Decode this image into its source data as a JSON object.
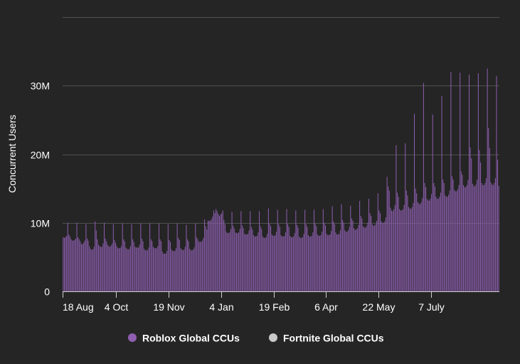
{
  "colors": {
    "background": "#252525",
    "roblox": "#8e5fb0",
    "roblox_stroke": "#a77ccc",
    "fortnite": "#c9c9c9",
    "gridline": "#505050",
    "axis_text": "#ffffff"
  },
  "chart_data": {
    "type": "bar",
    "title": "",
    "xlabel": "",
    "ylabel": "Concurrent Users",
    "ylim": [
      0,
      40000000
    ],
    "yticks": [
      {
        "value": 0,
        "label": "0"
      },
      {
        "value": 10000000,
        "label": "10M"
      },
      {
        "value": 20000000,
        "label": "20M"
      },
      {
        "value": 30000000,
        "label": "30M"
      },
      {
        "value": 40000000,
        "label": ""
      }
    ],
    "x_start_label": "18 Aug",
    "x_ticks": [
      {
        "day": 0,
        "label": "18 Aug"
      },
      {
        "day": 47,
        "label": "4 Oct"
      },
      {
        "day": 93,
        "label": "19 Nov"
      },
      {
        "day": 139,
        "label": "4 Jan"
      },
      {
        "day": 185,
        "label": "19 Feb"
      },
      {
        "day": 231,
        "label": "6 Apr"
      },
      {
        "day": 277,
        "label": "22 May"
      },
      {
        "day": 323,
        "label": "7 July"
      }
    ],
    "legend": [
      {
        "name": "Roblox Global CCUs",
        "color": "#8e5fb0",
        "icon": "circle"
      },
      {
        "name": "Fortnite Global CCUs",
        "color": "#c9c9c9",
        "icon": "circle"
      }
    ],
    "legend_position": "bottom-center",
    "series": [
      {
        "name": "Roblox Global CCUs",
        "start_day": 0,
        "values": [
          7900000,
          7800000,
          7900000,
          8100000,
          10000000,
          8300000,
          8000000,
          7600000,
          7400000,
          7400000,
          7500000,
          7700000,
          10000000,
          7900000,
          7600000,
          7300000,
          6900000,
          6900000,
          7100000,
          7400000,
          9800000,
          7700000,
          7400000,
          6600000,
          6200000,
          6100000,
          6100000,
          6500000,
          10200000,
          8900000,
          7600000,
          6800000,
          6600000,
          6500000,
          6500000,
          7000000,
          10000000,
          7700000,
          7300000,
          6800000,
          6600000,
          6500000,
          6700000,
          7000000,
          9800000,
          7500000,
          7100000,
          6600000,
          6300000,
          6300000,
          6300000,
          6600000,
          9900000,
          7600000,
          7300000,
          6400000,
          6200000,
          6100000,
          6200000,
          6600000,
          9800000,
          7600000,
          7200000,
          6500000,
          6400000,
          6400000,
          6400000,
          6800000,
          9900000,
          7700000,
          7300000,
          6200000,
          6000000,
          6000000,
          6000000,
          6400000,
          9900000,
          7600000,
          7300000,
          6500000,
          6300000,
          6300000,
          6300000,
          6600000,
          9900000,
          7600000,
          7300000,
          5800000,
          5500000,
          5500000,
          5500000,
          5900000,
          9800000,
          7500000,
          7200000,
          6100000,
          5900000,
          5900000,
          5900000,
          6300000,
          9900000,
          7800000,
          7500000,
          6300000,
          6100000,
          6000000,
          6100000,
          6500000,
          9700000,
          7600000,
          7300000,
          6200000,
          6000000,
          6000000,
          6100000,
          6400000,
          9900000,
          7900000,
          7600000,
          7200000,
          7300000,
          7200000,
          7400000,
          7800000,
          10500000,
          9500000,
          9000000,
          10300000,
          10300000,
          10300000,
          10500000,
          10900000,
          11800000,
          11400000,
          12000000,
          11700000,
          11300000,
          11000000,
          11200000,
          11400000,
          11800000,
          10400000,
          9800000,
          8700000,
          8500000,
          8500000,
          8600000,
          9100000,
          11600000,
          9600000,
          9200000,
          8600000,
          8500000,
          8500000,
          8600000,
          9100000,
          11700000,
          9600000,
          9200000,
          8400000,
          8300000,
          8300000,
          8400000,
          8900000,
          11700000,
          9400000,
          9000000,
          8200000,
          8000000,
          8000000,
          8100000,
          8600000,
          11700000,
          9500000,
          9100000,
          8000000,
          7800000,
          7800000,
          7900000,
          8400000,
          12100000,
          9900000,
          9500000,
          8300000,
          8100000,
          8100000,
          8200000,
          8700000,
          11900000,
          9800000,
          9400000,
          8200000,
          8000000,
          8000000,
          8100000,
          8600000,
          12000000,
          9800000,
          9400000,
          8100000,
          7900000,
          7900000,
          8000000,
          8500000,
          11800000,
          9700000,
          9300000,
          8000000,
          7800000,
          7800000,
          7900000,
          8400000,
          11900000,
          9800000,
          9400000,
          8200000,
          8000000,
          8000000,
          8100000,
          8600000,
          11900000,
          9900000,
          9500000,
          8300000,
          8100000,
          8100000,
          8200000,
          8700000,
          12000000,
          10000000,
          9600000,
          8400000,
          8200000,
          8200000,
          8300000,
          8800000,
          12400000,
          10200000,
          9800000,
          8600000,
          8300000,
          8300000,
          8400000,
          8900000,
          12700000,
          10400000,
          10000000,
          8900000,
          8700000,
          8700000,
          8900000,
          9400000,
          12500000,
          10600000,
          10300000,
          9200000,
          9000000,
          9000000,
          9200000,
          9700000,
          13200000,
          11000000,
          10600000,
          9500000,
          9300000,
          9300000,
          9500000,
          10000000,
          13500000,
          11400000,
          11000000,
          9800000,
          9600000,
          9600000,
          9800000,
          10300000,
          14300000,
          11800000,
          11400000,
          10200000,
          10000000,
          10000000,
          10200000,
          10800000,
          16700000,
          15300000,
          14700000,
          12200000,
          11800000,
          11700000,
          12000000,
          12600000,
          21300000,
          14400000,
          13800000,
          12000000,
          11800000,
          11800000,
          12000000,
          12600000,
          21600000,
          14700000,
          14000000,
          12300000,
          12100000,
          12000000,
          12300000,
          12900000,
          25900000,
          15000000,
          14300000,
          13000000,
          12800000,
          12700000,
          13000000,
          13600000,
          30400000,
          15800000,
          15200000,
          13500000,
          13300000,
          13200000,
          13500000,
          14200000,
          25800000,
          15800000,
          15300000,
          13800000,
          13500000,
          13500000,
          13800000,
          14400000,
          28500000,
          16300000,
          15800000,
          14000000,
          13800000,
          13800000,
          14100000,
          14700000,
          32000000,
          16800000,
          16300000,
          14800000,
          14600000,
          14600000,
          14900000,
          15500000,
          31900000,
          17500000,
          17000000,
          15500000,
          15200000,
          15200000,
          15500000,
          16200000,
          31600000,
          21000000,
          19400000,
          15700000,
          15400000,
          15300000,
          15600000,
          16300000,
          31800000,
          20600000,
          18800000,
          15800000,
          15500000,
          15500000,
          15800000,
          16500000,
          32500000,
          23800000,
          20900000,
          15900000,
          15600000,
          15500000,
          15800000,
          16500000,
          31400000,
          19200000,
          15400000
        ]
      },
      {
        "name": "Fortnite Global CCUs",
        "start_day": 0,
        "values": []
      }
    ]
  }
}
